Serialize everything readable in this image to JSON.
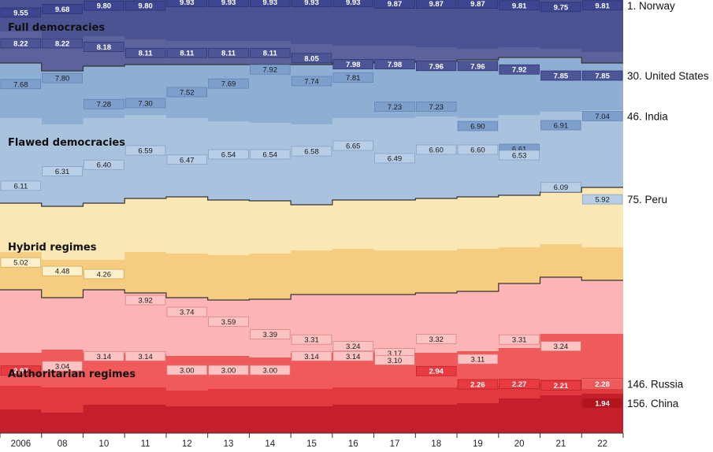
{
  "chart_data": {
    "type": "area",
    "title": "",
    "xlabel": "",
    "ylabel": "",
    "x": [
      "2006",
      "08",
      "10",
      "11",
      "12",
      "13",
      "14",
      "15",
      "16",
      "17",
      "18",
      "19",
      "20",
      "21",
      "22"
    ],
    "ylim": [
      0,
      10
    ],
    "grid": false,
    "regime_bands": [
      {
        "name": "Full democracies",
        "color": "#5c639c"
      },
      {
        "name": "Flawed democracies",
        "color": "#b5cbe3"
      },
      {
        "name": "Hybrid regimes",
        "color": "#fbe7b4"
      },
      {
        "name": "Authoritarian regimes",
        "color": "#fcb4b4"
      }
    ],
    "series": [
      {
        "name": "1. Norway",
        "values": [
          9.55,
          9.68,
          9.8,
          9.8,
          9.93,
          9.93,
          9.93,
          9.93,
          9.93,
          9.87,
          9.87,
          9.87,
          9.81,
          9.75,
          9.81
        ]
      },
      {
        "name": "30. United States",
        "values": [
          8.22,
          8.22,
          8.18,
          8.11,
          8.11,
          8.11,
          8.11,
          8.05,
          7.98,
          7.98,
          7.96,
          7.96,
          7.92,
          7.85,
          7.85
        ]
      },
      {
        "name": "46. India",
        "values": [
          7.68,
          7.8,
          7.28,
          7.3,
          7.52,
          7.69,
          7.92,
          7.74,
          7.81,
          7.23,
          7.23,
          6.9,
          6.61,
          6.91,
          7.04
        ]
      },
      {
        "name": "75. Peru",
        "values": [
          6.11,
          6.31,
          6.4,
          6.59,
          6.47,
          6.54,
          6.54,
          6.58,
          6.65,
          6.49,
          6.6,
          6.6,
          6.53,
          6.09,
          5.92
        ]
      },
      {
        "name": "",
        "values": [
          5.02,
          4.48,
          4.26,
          null,
          null,
          null,
          null,
          null,
          null,
          null,
          null,
          null,
          null,
          null,
          null
        ]
      },
      {
        "name": "146. Russia",
        "values": [
          null,
          null,
          null,
          3.92,
          3.74,
          3.59,
          3.39,
          3.31,
          3.24,
          3.17,
          3.32,
          3.11,
          3.31,
          3.24,
          2.28
        ]
      },
      {
        "name": "",
        "values": [
          null,
          3.04,
          3.14,
          3.14,
          3.0,
          3.0,
          3.0,
          3.14,
          3.14,
          3.1,
          null,
          null,
          null,
          null,
          null
        ]
      },
      {
        "name": "156. China",
        "values": [
          2.97,
          null,
          null,
          null,
          null,
          null,
          null,
          null,
          null,
          null,
          2.94,
          2.26,
          2.27,
          2.21,
          1.94
        ]
      }
    ]
  }
}
